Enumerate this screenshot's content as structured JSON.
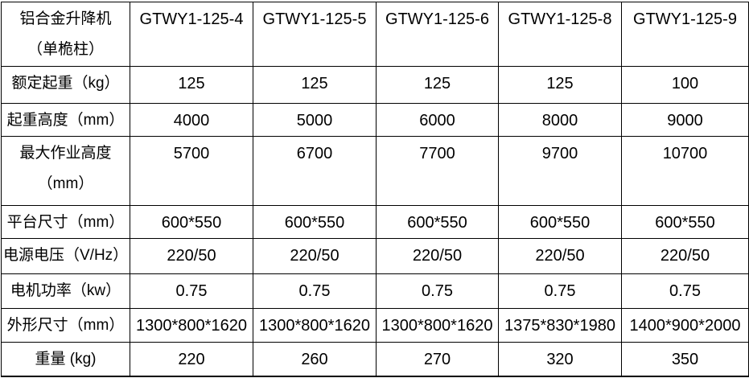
{
  "table": {
    "product": {
      "line1": "铝合金升降机",
      "line2": "（单桅柱）"
    },
    "models": [
      "GTWY1-125-4",
      "GTWY1-125-5",
      "GTWY1-125-6",
      "GTWY1-125-8",
      "GTWY1-125-9"
    ],
    "rows": [
      {
        "label": "额定起重（kg）",
        "values": [
          "125",
          "125",
          "125",
          "125",
          "100"
        ]
      },
      {
        "label": "起重高度（mm）",
        "values": [
          "4000",
          "5000",
          "6000",
          "8000",
          "9000"
        ]
      },
      {
        "label": "最大作业高度",
        "label2": "（mm）",
        "values": [
          "5700",
          "6700",
          "7700",
          "9700",
          "10700"
        ]
      },
      {
        "label": "平台尺寸（mm）",
        "values": [
          "600*550",
          "600*550",
          "600*550",
          "600*550",
          "600*550"
        ]
      },
      {
        "label": "电源电压（V/Hz）",
        "values": [
          "220/50",
          "220/50",
          "220/50",
          "220/50",
          "220/50"
        ]
      },
      {
        "label": "电机功率（kw）",
        "values": [
          "0.75",
          "0.75",
          "0.75",
          "0.75",
          "0.75"
        ]
      },
      {
        "label": "外形尺寸（mm）",
        "values": [
          "1300*800*1620",
          "1300*800*1620",
          "1300*800*1620",
          "1375*830*1980",
          "1400*900*2000"
        ]
      },
      {
        "label": "重量 (kg)",
        "values": [
          "220",
          "260",
          "270",
          "320",
          "350"
        ]
      }
    ],
    "colors": {
      "border": "#000000",
      "background": "#ffffff",
      "text": "#000000"
    }
  }
}
